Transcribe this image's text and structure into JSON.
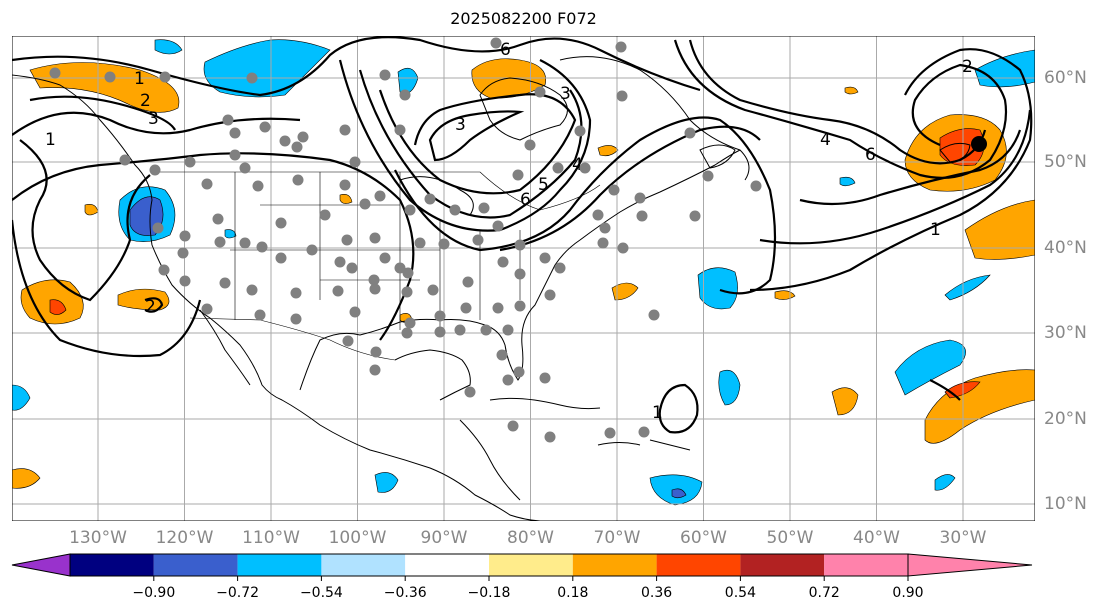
{
  "title": "2025082200 F072",
  "longitude_labels": [
    "130°W",
    "120°W",
    "110°W",
    "100°W",
    "90°W",
    "80°W",
    "70°W",
    "60°W",
    "50°W",
    "40°W",
    "30°W"
  ],
  "latitude_labels": [
    "60°N",
    "50°N",
    "40°N",
    "30°N",
    "20°N",
    "10°N"
  ],
  "colorbar": {
    "ticks": [
      "−0.90",
      "−0.72",
      "−0.54",
      "−0.36",
      "−0.18",
      "0.18",
      "0.36",
      "0.54",
      "0.72",
      "0.90"
    ],
    "colors": [
      "#9932cc",
      "#000080",
      "#3a5fcd",
      "#00bfff",
      "#b0e2ff",
      "#ffffff",
      "#ffec8b",
      "#ffa500",
      "#ff4500",
      "#b22222",
      "#ff82ab"
    ]
  },
  "contour_labels": [
    "1",
    "2",
    "3",
    "3",
    "3",
    "4",
    "5",
    "6",
    "6",
    "1",
    "2",
    "4",
    "6",
    "1",
    "2",
    "1"
  ]
}
